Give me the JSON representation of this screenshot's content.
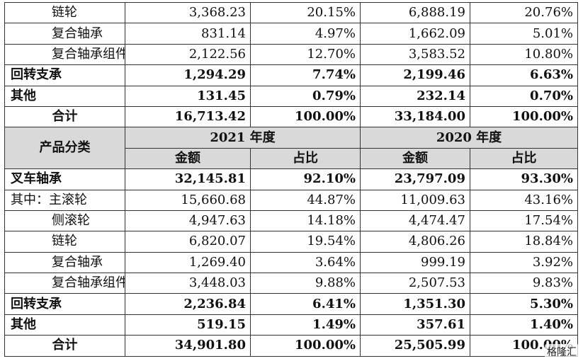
{
  "top_rows": [
    {
      "label": "链轮",
      "v1": "3,368.23",
      "p1": "20.15%",
      "v2": "6,888.19",
      "p2": "20.76%",
      "bold": false,
      "indent": 1
    },
    {
      "label": "复合轴承",
      "v1": "831.14",
      "p1": "4.97%",
      "v2": "1,662.09",
      "p2": "5.01%",
      "bold": false,
      "indent": 1
    },
    {
      "label": "复合轴承组件",
      "v1": "2,122.56",
      "p1": "12.70%",
      "v2": "3,583.52",
      "p2": "10.80%",
      "bold": false,
      "indent": 1
    },
    {
      "label": "回转支承",
      "v1": "1,294.29",
      "p1": "7.74%",
      "v2": "2,199.46",
      "p2": "6.63%",
      "bold": true,
      "indent": 0
    },
    {
      "label": "其他",
      "v1": "131.45",
      "p1": "0.79%",
      "v2": "232.14",
      "p2": "0.70%",
      "bold": true,
      "indent": 0
    },
    {
      "label": "合计",
      "v1": "16,713.42",
      "p1": "100.00%",
      "v2": "33,184.00",
      "p2": "100.00%",
      "bold": true,
      "indent": "center"
    }
  ],
  "header": {
    "category": "产品分类",
    "year1": "2021 年度",
    "year2": "2020 年度",
    "amount": "金额",
    "ratio": "占比"
  },
  "bottom_rows": [
    {
      "label": "叉车轴承",
      "v1": "32,145.81",
      "p1": "92.10%",
      "v2": "23,797.09",
      "p2": "93.30%",
      "bold": true,
      "indent": 0
    },
    {
      "label": "其中：主滚轮",
      "v1": "15,660.68",
      "p1": "44.87%",
      "v2": "11,009.63",
      "p2": "43.16%",
      "bold": false,
      "indent": 0
    },
    {
      "label": "侧滚轮",
      "v1": "4,947.63",
      "p1": "14.18%",
      "v2": "4,474.47",
      "p2": "17.54%",
      "bold": false,
      "indent": 1
    },
    {
      "label": "链轮",
      "v1": "6,820.07",
      "p1": "19.54%",
      "v2": "4,806.26",
      "p2": "18.84%",
      "bold": false,
      "indent": 1
    },
    {
      "label": "复合轴承",
      "v1": "1,269.40",
      "p1": "3.64%",
      "v2": "999.19",
      "p2": "3.92%",
      "bold": false,
      "indent": 1
    },
    {
      "label": "复合轴承组件",
      "v1": "3,448.03",
      "p1": "9.88%",
      "v2": "2,507.53",
      "p2": "9.83%",
      "bold": false,
      "indent": 1
    },
    {
      "label": "回转支承",
      "v1": "2,236.84",
      "p1": "6.41%",
      "v2": "1,351.30",
      "p2": "5.30%",
      "bold": true,
      "indent": 0
    },
    {
      "label": "其他",
      "v1": "519.15",
      "p1": "1.49%",
      "v2": "357.61",
      "p2": "1.40%",
      "bold": true,
      "indent": 0
    },
    {
      "label": "合计",
      "v1": "34,901.80",
      "p1": "100.00%",
      "v2": "25,505.99",
      "p2": "100.00%",
      "bold": true,
      "indent": "center"
    }
  ],
  "watermark": "格隆汇"
}
